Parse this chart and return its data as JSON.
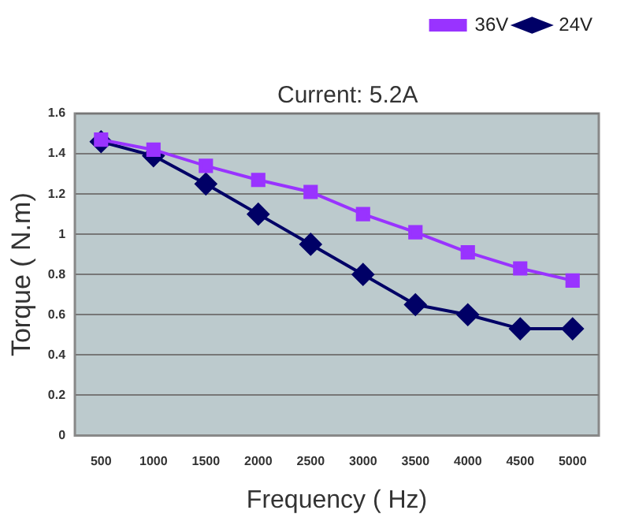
{
  "chart_data": {
    "type": "line",
    "title": "Current: 5.2A",
    "xlabel": "Frequency ( Hz)",
    "ylabel": "Torque ( N.m)",
    "categories": [
      "500",
      "1000",
      "1500",
      "2000",
      "2500",
      "3000",
      "3500",
      "4000",
      "4500",
      "5000"
    ],
    "series": [
      {
        "name": "24V",
        "color": "#000066",
        "marker": "diamond",
        "values": [
          1.46,
          1.39,
          1.25,
          1.1,
          0.95,
          0.8,
          0.65,
          0.6,
          0.53,
          0.53
        ]
      },
      {
        "name": "36V",
        "color": "#9933ff",
        "marker": "square",
        "values": [
          1.47,
          1.42,
          1.34,
          1.27,
          1.21,
          1.1,
          1.01,
          0.91,
          0.83,
          0.77
        ]
      }
    ],
    "ylim": [
      0,
      1.6
    ],
    "yticks": [
      0,
      0.2,
      0.4,
      0.6,
      0.8,
      1,
      1.2,
      1.4,
      1.6
    ],
    "grid": "y",
    "legend": "top right",
    "line_style": "solid"
  }
}
